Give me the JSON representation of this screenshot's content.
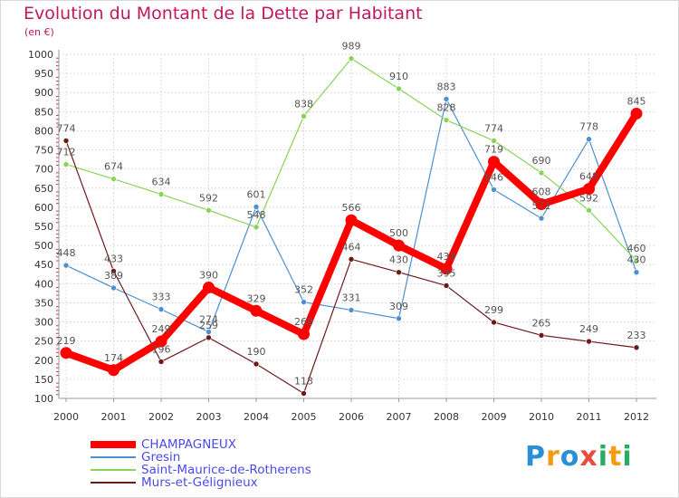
{
  "chart_data": {
    "type": "line",
    "title": "Evolution du Montant de la Dette par Habitant",
    "subtitle": "(en €)",
    "xlabel": "",
    "ylabel": "",
    "x": [
      "2000",
      "2001",
      "2002",
      "2003",
      "2004",
      "2005",
      "2006",
      "2007",
      "2008",
      "2009",
      "2010",
      "2011",
      "2012"
    ],
    "yticks": [
      100,
      150,
      200,
      250,
      300,
      350,
      400,
      450,
      500,
      550,
      600,
      650,
      700,
      750,
      800,
      850,
      900,
      950,
      1000
    ],
    "ylim": [
      100,
      1000
    ],
    "grid": true,
    "legend_position": "bottom-left",
    "series": [
      {
        "name": "CHAMPAGNEUX",
        "color": "#ff0000",
        "values": [
          219,
          174,
          249,
          390,
          329,
          268,
          566,
          500,
          439,
          719,
          608,
          648,
          845
        ],
        "labels": [
          "219",
          "174",
          "249",
          "390",
          "329",
          "268",
          "566",
          "500",
          "439",
          "719",
          "608",
          "648",
          "845"
        ]
      },
      {
        "name": "Gresin",
        "color": "#4d8fcf",
        "values": [
          448,
          389,
          333,
          274,
          601,
          352,
          331,
          309,
          883,
          646,
          571,
          778,
          430
        ],
        "labels": [
          "448",
          "389",
          "333",
          "274",
          "601",
          "352",
          "331",
          "309",
          "883",
          "646",
          "571",
          "778",
          "430"
        ]
      },
      {
        "name": "Saint-Maurice-de-Rotherens",
        "color": "#88d35a",
        "values": [
          712,
          674,
          634,
          592,
          548,
          838,
          989,
          910,
          828,
          774,
          690,
          592,
          460
        ],
        "labels": [
          "712",
          "674",
          "634",
          "592",
          "548",
          "838",
          "989",
          "910",
          "828",
          "774",
          "690",
          "592",
          "460"
        ]
      },
      {
        "name": "Murs-et-Gélignieux",
        "color": "#6b1a1a",
        "values": [
          774,
          433,
          196,
          259,
          190,
          113,
          464,
          430,
          395,
          299,
          265,
          249,
          233
        ],
        "labels": [
          "774",
          "433",
          "196",
          "259",
          "190",
          "113",
          "464",
          "430",
          "395",
          "299",
          "265",
          "249",
          "233"
        ]
      }
    ]
  },
  "brand": {
    "text": "Proxiti",
    "letters": [
      "P",
      "r",
      "o",
      "x",
      "i",
      "t",
      "i"
    ],
    "colors": [
      "#2a8fd6",
      "#f39c12",
      "#2a8fd6",
      "#e74c3c",
      "#27ae60",
      "#f39c12",
      "#27ae60"
    ]
  }
}
